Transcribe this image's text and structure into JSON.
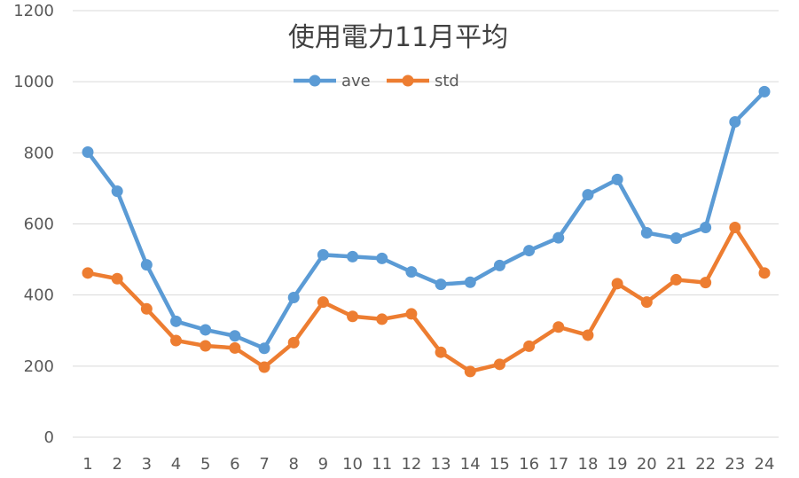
{
  "chart_data": {
    "type": "line",
    "title": "使用電力11月平均",
    "xlabel": "",
    "ylabel": "",
    "categories": [
      "1",
      "2",
      "3",
      "4",
      "5",
      "6",
      "7",
      "8",
      "9",
      "10",
      "11",
      "12",
      "13",
      "14",
      "15",
      "16",
      "17",
      "18",
      "19",
      "20",
      "21",
      "22",
      "23",
      "24"
    ],
    "ylim": [
      0,
      1200
    ],
    "yticks": [
      "0",
      "200",
      "400",
      "600",
      "800",
      "1000",
      "1200"
    ],
    "grid": true,
    "legend_position": "top",
    "series": [
      {
        "name": "ave",
        "color": "#5B9BD5",
        "values": [
          802,
          692,
          485,
          326,
          302,
          285,
          250,
          393,
          513,
          508,
          503,
          465,
          430,
          436,
          483,
          525,
          561,
          682,
          725,
          575,
          560,
          590,
          887,
          972
        ]
      },
      {
        "name": "std",
        "color": "#ED7D31",
        "values": [
          462,
          446,
          361,
          272,
          257,
          251,
          197,
          266,
          380,
          340,
          332,
          347,
          239,
          185,
          205,
          256,
          310,
          287,
          432,
          380,
          443,
          435,
          590,
          462
        ]
      }
    ],
    "gridline_color": "#D9D9D9"
  }
}
